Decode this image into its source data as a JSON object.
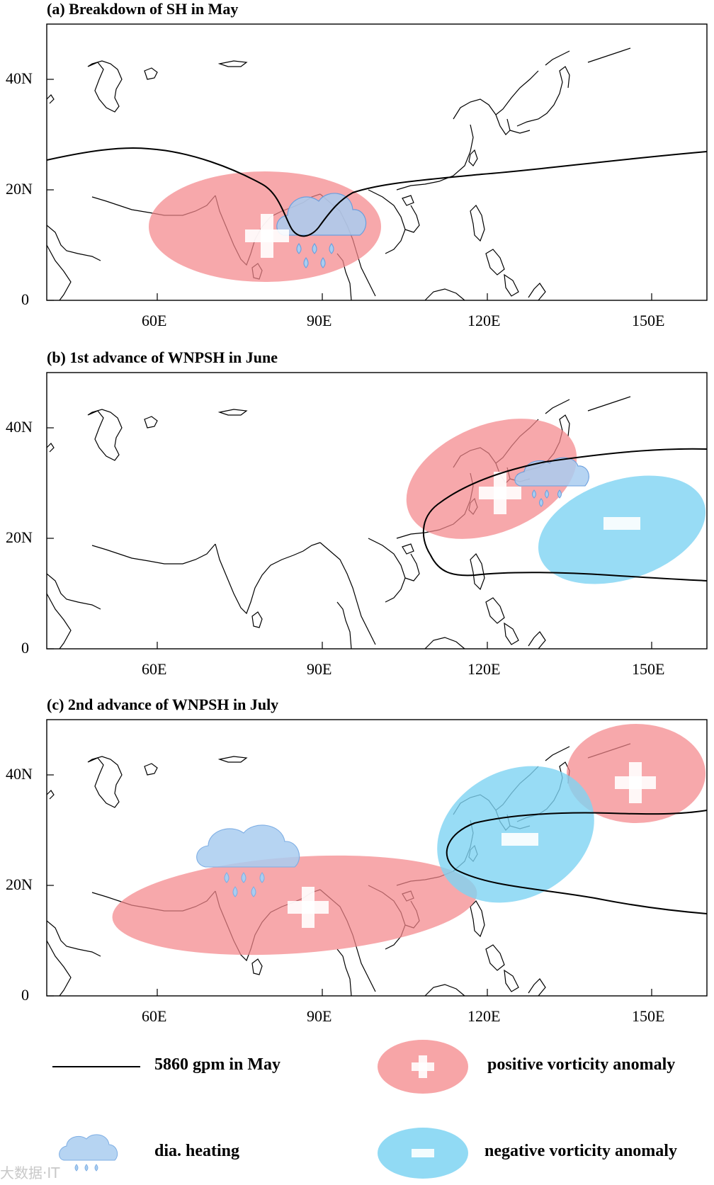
{
  "panels": [
    {
      "title": "(a) Breakdown of SH in May"
    },
    {
      "title": "(b) 1st advance of WNPSH in June"
    },
    {
      "title": "(c) 2nd advance of WNPSH in July"
    }
  ],
  "axes": {
    "x_ticks": [
      "60E",
      "90E",
      "120E",
      "150E"
    ],
    "y_ticks": [
      "40N",
      "20N",
      "0"
    ]
  },
  "legend": {
    "line_label": "5860 gpm in May",
    "heating_label": "dia. heating",
    "positive_label": "positive vorticity anomaly",
    "negative_label": "negative vorticity anomaly"
  },
  "colors": {
    "positive": "#f4878a",
    "negative": "#7ed3f2",
    "cloud": "#a9cdf0",
    "contour": "#000000"
  },
  "watermark": "大数据·IT"
}
